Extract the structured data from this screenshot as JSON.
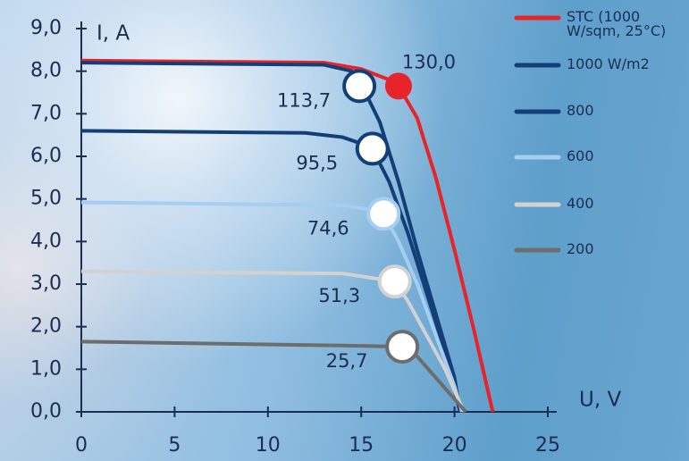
{
  "chart_data": {
    "type": "line",
    "x_label": "U, V",
    "y_label": "I, A",
    "xlim": [
      0,
      25
    ],
    "ylim": [
      0,
      9
    ],
    "xticks": [
      0,
      5,
      10,
      15,
      20,
      25
    ],
    "yticks": [
      {
        "value": 0,
        "label": "0,0"
      },
      {
        "value": 1,
        "label": "1,0"
      },
      {
        "value": 2,
        "label": "2,0"
      },
      {
        "value": 3,
        "label": "3,0"
      },
      {
        "value": 4,
        "label": "4,0"
      },
      {
        "value": 5,
        "label": "5,0"
      },
      {
        "value": 6,
        "label": "6,0"
      },
      {
        "value": 7,
        "label": "7,0"
      },
      {
        "value": 8,
        "label": "8,0"
      },
      {
        "value": 9,
        "label": "9,0"
      }
    ],
    "series": [
      {
        "name": "STC (1000 W/sqm, 25°C)",
        "color": "#e8242b",
        "x": [
          0,
          13,
          15,
          16.5,
          17,
          18,
          19,
          20,
          21,
          22.05
        ],
        "values": [
          8.25,
          8.2,
          8.05,
          7.8,
          7.65,
          6.9,
          5.5,
          3.8,
          2.0,
          0
        ],
        "mpp_x": 17.0,
        "mpp_y": 7.65,
        "mpp_label": "130,0",
        "mpp_filled": true
      },
      {
        "name": "1000 W/m2",
        "color": "#133f78",
        "x": [
          0,
          13,
          14.5,
          15,
          16,
          17,
          18,
          19,
          20,
          20.3
        ],
        "values": [
          8.2,
          8.15,
          8.0,
          7.7,
          6.8,
          5.4,
          3.8,
          2.3,
          0.8,
          0
        ],
        "mpp_x": 14.9,
        "mpp_y": 7.65,
        "mpp_label": "113,7",
        "mpp_filled": false
      },
      {
        "name": "800",
        "color": "#133f78",
        "x": [
          0,
          12,
          14,
          15,
          15.6,
          16.5,
          17.5,
          18.5,
          19.5,
          20.3
        ],
        "values": [
          6.6,
          6.55,
          6.45,
          6.3,
          6.18,
          5.4,
          4.2,
          2.8,
          1.4,
          0
        ],
        "mpp_x": 15.6,
        "mpp_y": 6.18,
        "mpp_label": "95,5",
        "mpp_filled": false
      },
      {
        "name": "600",
        "color": "#a6cdf3",
        "x": [
          0,
          14,
          15.5,
          16.2,
          17,
          18,
          19,
          20,
          20.4
        ],
        "values": [
          4.92,
          4.85,
          4.75,
          4.65,
          4.0,
          3.0,
          1.8,
          0.6,
          0
        ],
        "mpp_x": 16.2,
        "mpp_y": 4.65,
        "mpp_label": "74,6",
        "mpp_filled": false
      },
      {
        "name": "400",
        "color": "#d2d2d2",
        "x": [
          0,
          14,
          15.5,
          16.8,
          17.5,
          18.5,
          19.5,
          20.5
        ],
        "values": [
          3.3,
          3.25,
          3.15,
          3.06,
          2.6,
          1.8,
          1.0,
          0
        ],
        "mpp_x": 16.8,
        "mpp_y": 3.06,
        "mpp_label": "51,3",
        "mpp_filled": false
      },
      {
        "name": "200",
        "color": "#6d6d6d",
        "x": [
          0,
          15,
          17.2,
          18,
          19,
          20,
          20.6
        ],
        "values": [
          1.65,
          1.55,
          1.53,
          1.3,
          0.8,
          0.3,
          0
        ],
        "mpp_x": 17.2,
        "mpp_y": 1.53,
        "mpp_label": "25,7",
        "mpp_filled": false
      }
    ]
  }
}
